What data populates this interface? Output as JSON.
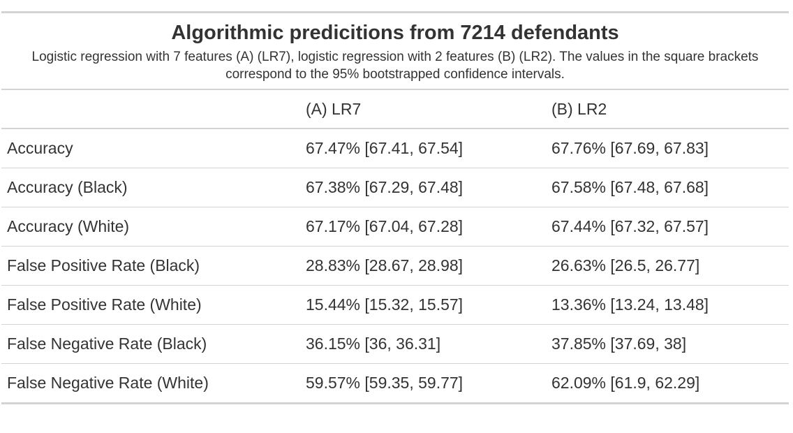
{
  "table": {
    "title": "Algorithmic predicitions from 7214 defendants",
    "subtitle": "Logistic regression with 7 features (A) (LR7), logistic regression with 2 features (B) (LR2). The values in the square brackets correspond to the 95% bootstrapped confidence intervals.",
    "columns": [
      "",
      "(A) LR7",
      "(B) LR2"
    ],
    "rows": [
      {
        "metric": "Accuracy",
        "lr7": "67.47% [67.41, 67.54]",
        "lr2": "67.76% [67.69, 67.83]"
      },
      {
        "metric": "Accuracy (Black)",
        "lr7": "67.38% [67.29, 67.48]",
        "lr2": "67.58% [67.48, 67.68]"
      },
      {
        "metric": "Accuracy (White)",
        "lr7": "67.17% [67.04, 67.28]",
        "lr2": "67.44% [67.32, 67.57]"
      },
      {
        "metric": "False Positive Rate (Black)",
        "lr7": "28.83% [28.67, 28.98]",
        "lr2": "26.63% [26.5, 26.77]"
      },
      {
        "metric": "False Positive Rate (White)",
        "lr7": "15.44% [15.32, 15.57]",
        "lr2": "13.36% [13.24, 13.48]"
      },
      {
        "metric": "False Negative Rate (Black)",
        "lr7": "36.15% [36, 36.31]",
        "lr2": "37.85% [37.69, 38]"
      },
      {
        "metric": "False Negative Rate (White)",
        "lr7": "59.57% [59.35, 59.77]",
        "lr2": "62.09% [61.9, 62.29]"
      }
    ]
  }
}
